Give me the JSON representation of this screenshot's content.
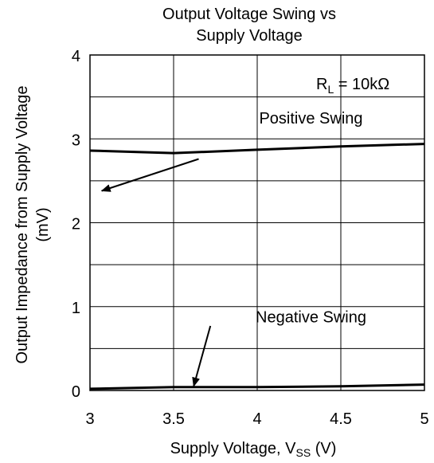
{
  "chart_data": {
    "type": "line",
    "title": "Output Voltage Swing vs Supply Voltage",
    "title_lines": [
      "Output Voltage Swing vs",
      "Supply Voltage"
    ],
    "xlabel": "Supply Voltage, V",
    "xlabel_sub": "SS",
    "xlabel_unit": " (V)",
    "ylabel_lines": [
      "Output Impedance from Supply Voltage",
      "(mV)"
    ],
    "xlim": [
      3,
      5
    ],
    "ylim": [
      0,
      4
    ],
    "x_ticks": [
      3,
      3.5,
      4,
      4.5,
      5
    ],
    "x_tick_labels": [
      "3",
      "3.5",
      "4",
      "4.5",
      "5"
    ],
    "y_ticks": [
      0,
      1,
      2,
      3,
      4
    ],
    "y_tick_labels": [
      "0",
      "1",
      "2",
      "3",
      "4"
    ],
    "grid": true,
    "condition_label": {
      "main": "R",
      "sub": "L",
      "rest": " = 10kΩ"
    },
    "series": [
      {
        "name": "Positive Swing",
        "x": [
          3,
          3.5,
          4,
          4.5,
          5
        ],
        "y": [
          2.86,
          2.83,
          2.87,
          2.91,
          2.94
        ]
      },
      {
        "name": "Negative Swing",
        "x": [
          3,
          3.5,
          4,
          4.5,
          5
        ],
        "y": [
          0.02,
          0.04,
          0.04,
          0.05,
          0.07
        ]
      }
    ],
    "annotations": [
      {
        "text": "Positive Swing",
        "label_at": [
          4.25,
          3.25
        ],
        "arrow_from": [
          3.65,
          2.76
        ],
        "arrow_to": [
          3.07,
          2.38
        ]
      },
      {
        "text": "Negative Swing",
        "label_at": [
          4.25,
          0.88
        ],
        "arrow_from": [
          3.72,
          0.77
        ],
        "arrow_to": [
          3.62,
          0.05
        ]
      }
    ],
    "colors": {
      "line": "#000000",
      "grid": "#000000",
      "background": "#ffffff"
    }
  }
}
